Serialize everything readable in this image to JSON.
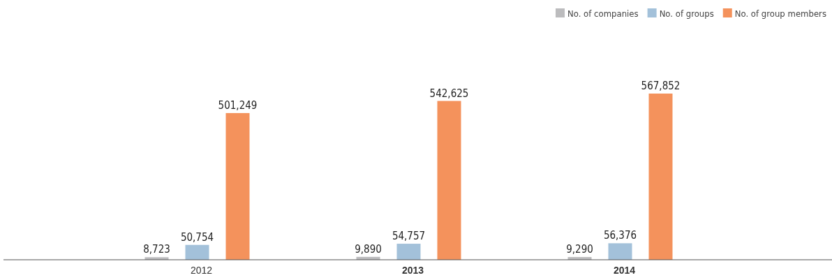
{
  "chart_data": {
    "type": "bar",
    "categories": [
      "2012",
      "2013",
      "2014"
    ],
    "series": [
      {
        "name": "No. of companies",
        "color": "#bcbcbe",
        "values": [
          8723,
          9890,
          9290
        ],
        "value_labels": [
          "8,723",
          "9,890",
          "9,290"
        ]
      },
      {
        "name": "No. of groups",
        "color": "#a3c1da",
        "values": [
          50754,
          54757,
          56376
        ],
        "value_labels": [
          "50,754",
          "54,757",
          "56,376"
        ]
      },
      {
        "name": "No. of group members",
        "color": "#f4925c",
        "values": [
          501249,
          542625,
          567852
        ],
        "value_labels": [
          "501,249",
          "542,625",
          "567,852"
        ]
      }
    ],
    "tick_labels": "x",
    "legend": "top right"
  }
}
